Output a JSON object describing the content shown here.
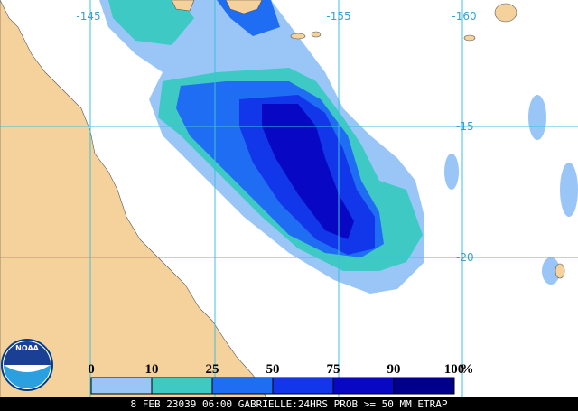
{
  "map": {
    "longitude_labels": [
      "-145",
      "-155",
      "-160"
    ],
    "latitude_labels": [
      "-15",
      "-20"
    ],
    "legend": {
      "stops": [
        0,
        10,
        25,
        50,
        75,
        90,
        100
      ],
      "unit": "%",
      "colors": [
        "#ffffff",
        "#99c6f7",
        "#3ec9c4",
        "#1f6df2",
        "#1236ea",
        "#0808c4",
        "#00008c"
      ]
    },
    "caption": "8 FEB 23039 06:00 GABRIELLE:24HRS PROB >= 50 MM ETRAP",
    "logo": "NOAA"
  }
}
